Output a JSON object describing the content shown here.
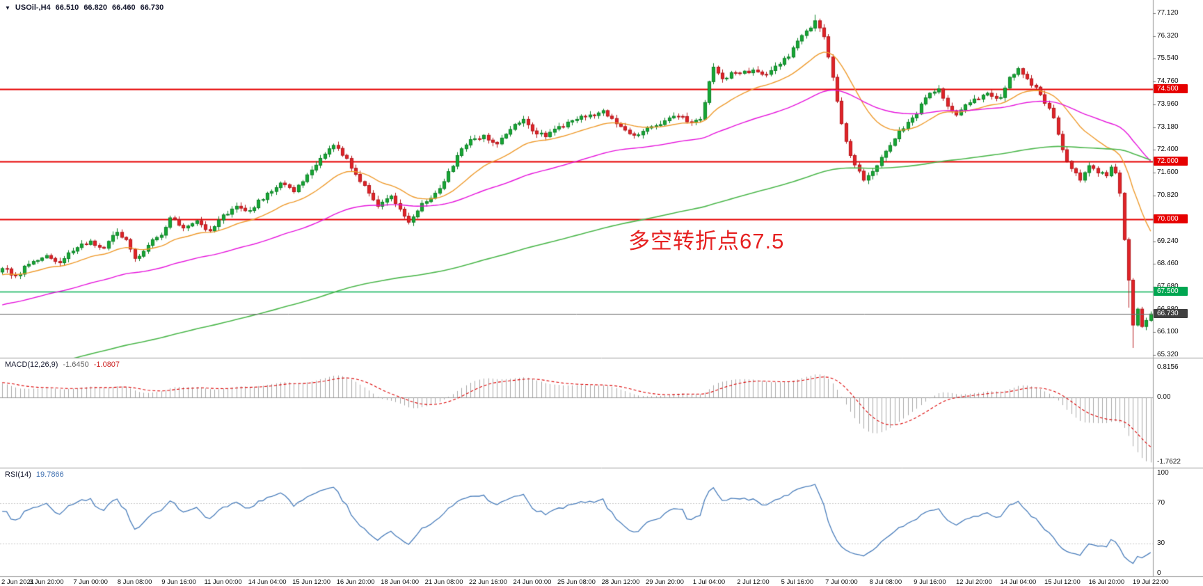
{
  "header": {
    "expand_arrow": "▼",
    "symbol_period": "USOil-,H4",
    "open": "66.510",
    "high": "66.820",
    "low": "66.460",
    "close": "66.730"
  },
  "annotation": {
    "text": "多空转折点67.5",
    "color": "#e62222"
  },
  "chart_data": {
    "type": "candlestick",
    "symbol": "USOil-",
    "timeframe": "H4",
    "bar_count": 261,
    "bars_per_label": 10,
    "ylim": [
      65.2227,
      77.5667
    ],
    "current_bar": {
      "open": 66.51,
      "high": 66.82,
      "low": 66.46,
      "close": 66.73
    },
    "current_price": {
      "value": 66.73,
      "label": "66.730"
    },
    "y_axis_ticks": [
      "77.120",
      "76.320",
      "75.540",
      "74.760",
      "73.960",
      "73.180",
      "72.400",
      "71.600",
      "70.820",
      "70.000",
      "69.240",
      "68.460",
      "67.680",
      "66.880",
      "66.100",
      "65.320"
    ],
    "x_labels": [
      "2 Jun 2021",
      "3 Jun 20:00",
      "7 Jun 00:00",
      "8 Jun 08:00",
      "9 Jun 16:00",
      "11 Jun 00:00",
      "14 Jun 04:00",
      "15 Jun 12:00",
      "16 Jun 20:00",
      "18 Jun 04:00",
      "21 Jun 08:00",
      "22 Jun 16:00",
      "24 Jun 00:00",
      "25 Jun 08:00",
      "28 Jun 12:00",
      "29 Jun 20:00",
      "1 Jul 04:00",
      "2 Jul 12:00",
      "5 Jul 16:00",
      "7 Jul 00:00",
      "8 Jul 08:00",
      "9 Jul 16:00",
      "12 Jul 20:00",
      "14 Jul 04:00",
      "15 Jul 12:00",
      "16 Jul 20:00",
      "19 Jul 22:00"
    ],
    "horizontal_levels": [
      {
        "price": 74.5,
        "label": "74.500",
        "color": "#e60000",
        "tag_bg": "#e60000",
        "line_width": 1.8
      },
      {
        "price": 72.0,
        "label": "72.000",
        "color": "#e60000",
        "tag_bg": "#e60000",
        "line_width": 1.8
      },
      {
        "price": 70.0,
        "label": "70.000",
        "color": "#e60000",
        "tag_bg": "#e60000",
        "line_width": 1.8
      },
      {
        "price": 67.5,
        "label": "67.500",
        "color": "#00b050",
        "tag_bg": "#00a651",
        "line_width": 1.5
      }
    ],
    "price_anchors": [
      [
        0,
        68.3
      ],
      [
        3,
        68.05
      ],
      [
        6,
        68.45
      ],
      [
        10,
        68.75
      ],
      [
        13,
        68.5
      ],
      [
        16,
        68.9
      ],
      [
        20,
        69.25
      ],
      [
        23,
        69.0
      ],
      [
        26,
        69.55
      ],
      [
        28,
        69.3
      ],
      [
        30,
        68.65
      ],
      [
        33,
        69.1
      ],
      [
        36,
        69.45
      ],
      [
        38,
        70.05
      ],
      [
        41,
        69.7
      ],
      [
        44,
        69.95
      ],
      [
        47,
        69.6
      ],
      [
        50,
        70.15
      ],
      [
        53,
        70.45
      ],
      [
        56,
        70.3
      ],
      [
        60,
        70.9
      ],
      [
        63,
        71.25
      ],
      [
        66,
        70.95
      ],
      [
        70,
        71.7
      ],
      [
        73,
        72.25
      ],
      [
        75,
        72.55
      ],
      [
        78,
        72.1
      ],
      [
        80,
        71.55
      ],
      [
        83,
        70.9
      ],
      [
        85,
        70.45
      ],
      [
        88,
        70.8
      ],
      [
        90,
        70.35
      ],
      [
        92,
        69.9
      ],
      [
        95,
        70.55
      ],
      [
        98,
        70.9
      ],
      [
        100,
        71.3
      ],
      [
        103,
        72.2
      ],
      [
        106,
        72.75
      ],
      [
        109,
        72.9
      ],
      [
        112,
        72.6
      ],
      [
        115,
        73.1
      ],
      [
        118,
        73.45
      ],
      [
        120,
        73.05
      ],
      [
        123,
        72.85
      ],
      [
        126,
        73.2
      ],
      [
        130,
        73.45
      ],
      [
        133,
        73.6
      ],
      [
        136,
        73.75
      ],
      [
        140,
        73.2
      ],
      [
        143,
        72.9
      ],
      [
        146,
        73.15
      ],
      [
        150,
        73.4
      ],
      [
        153,
        73.55
      ],
      [
        156,
        73.35
      ],
      [
        158,
        73.45
      ],
      [
        160,
        74.75
      ],
      [
        161,
        75.25
      ],
      [
        163,
        74.85
      ],
      [
        166,
        75.05
      ],
      [
        170,
        75.15
      ],
      [
        173,
        75.0
      ],
      [
        176,
        75.35
      ],
      [
        178,
        75.6
      ],
      [
        180,
        76.15
      ],
      [
        182,
        76.5
      ],
      [
        184,
        76.85
      ],
      [
        186,
        76.3
      ],
      [
        188,
        74.9
      ],
      [
        190,
        73.3
      ],
      [
        192,
        72.2
      ],
      [
        195,
        71.35
      ],
      [
        198,
        71.85
      ],
      [
        200,
        72.35
      ],
      [
        203,
        73.05
      ],
      [
        206,
        73.5
      ],
      [
        210,
        74.35
      ],
      [
        212,
        74.5
      ],
      [
        214,
        73.9
      ],
      [
        216,
        73.6
      ],
      [
        218,
        73.95
      ],
      [
        220,
        74.15
      ],
      [
        223,
        74.35
      ],
      [
        226,
        74.2
      ],
      [
        228,
        74.9
      ],
      [
        230,
        75.2
      ],
      [
        232,
        74.85
      ],
      [
        235,
        74.3
      ],
      [
        238,
        73.5
      ],
      [
        240,
        72.4
      ],
      [
        242,
        71.75
      ],
      [
        244,
        71.35
      ],
      [
        246,
        71.85
      ],
      [
        248,
        71.6
      ],
      [
        250,
        71.5
      ],
      [
        251,
        71.8
      ],
      [
        252,
        71.6
      ],
      [
        253,
        70.9
      ],
      [
        254,
        69.3
      ],
      [
        255,
        67.9
      ],
      [
        256,
        66.35
      ],
      [
        257,
        66.9
      ],
      [
        258,
        66.3
      ],
      [
        259,
        66.51
      ],
      [
        260,
        66.73
      ]
    ],
    "wick_overrides": [
      {
        "i": 184,
        "high": 77.06
      },
      {
        "i": 255,
        "low": 66.95
      },
      {
        "i": 256,
        "low": 65.56
      }
    ],
    "moving_averages": [
      {
        "period": 20,
        "color": "#ef9b2d",
        "width": 1.4
      },
      {
        "period": 65,
        "color": "#e614dc",
        "width": 1.4
      },
      {
        "period": 200,
        "color": "#4db84d",
        "width": 1.6
      }
    ],
    "indicators": {
      "macd": {
        "label": "MACD(12,26,9)",
        "main_value": "-1.6450",
        "signal_value": "-1.0807",
        "params": [
          12,
          26,
          9
        ],
        "scale_labels": [
          "0.8156",
          "0.00",
          "-1.7622"
        ],
        "scale_top": 0.8156,
        "scale_bottom": -1.7622,
        "histogram_color": "#a9a9a9",
        "signal_color": "#dd0000"
      },
      "rsi": {
        "label": "RSI(14)",
        "value": "19.7866",
        "period": 14,
        "scale_labels": [
          "100",
          "70",
          "30",
          "0"
        ],
        "levels": [
          70,
          30
        ],
        "line_color": "#4a7ebc"
      }
    },
    "style": {
      "up": "#16a734",
      "up_border": "#0c8226",
      "down": "#e02328",
      "down_border": "#b5161b",
      "current_line": "#707070",
      "current_tag_bg": "#404040",
      "frame": "#9a9a9a"
    }
  }
}
